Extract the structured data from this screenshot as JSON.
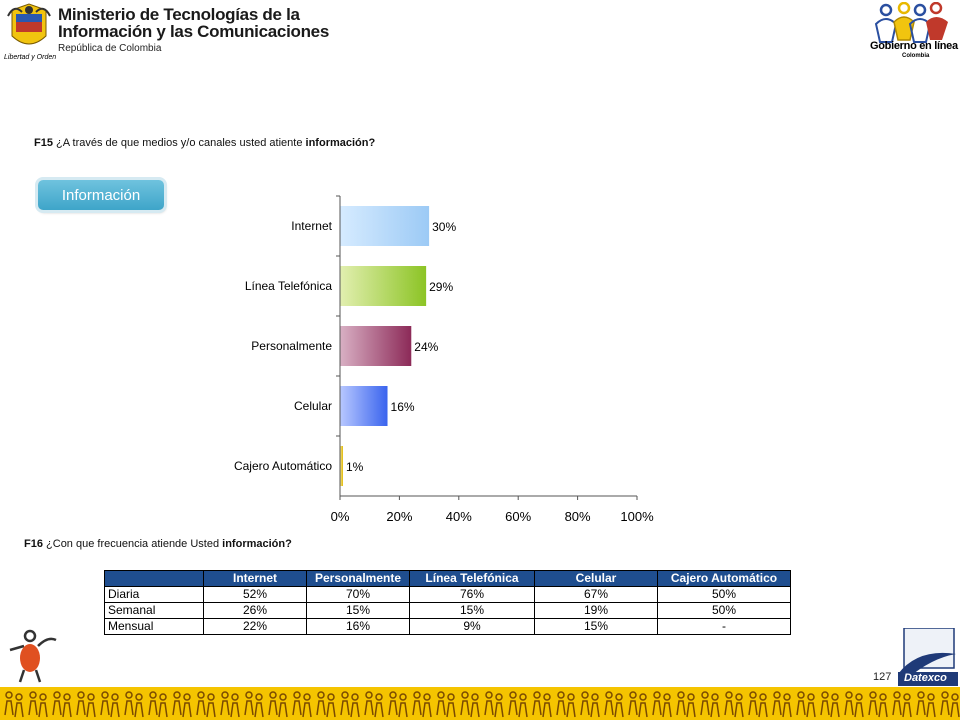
{
  "header": {
    "ministry_line1": "Ministerio de Tecnologías de la",
    "ministry_line2": "Información y las Comunicaciones",
    "ministry_line3": "República de Colombia",
    "seal_caption": "Libertad y Orden",
    "gobierno_line1": "Gobierno en línea",
    "gobierno_line2": "Colombia"
  },
  "q15": {
    "code": "F15",
    "text": "¿A través de que medios y/o canales usted atiente",
    "bold": "información?"
  },
  "q16": {
    "code": "F16",
    "text": "¿Con que frecuencia atiende Usted",
    "bold": "información?"
  },
  "badge": {
    "label": "Información"
  },
  "chart_data": {
    "type": "bar",
    "orientation": "horizontal",
    "categories": [
      "Internet",
      "Línea Telefónica",
      "Personalmente",
      "Celular",
      "Cajero Automático"
    ],
    "values": [
      30,
      29,
      24,
      16,
      1
    ],
    "value_labels": [
      "30%",
      "29%",
      "24%",
      "16%",
      "1%"
    ],
    "x_ticks": [
      "0%",
      "20%",
      "40%",
      "60%",
      "80%",
      "100%"
    ],
    "xlim": [
      0,
      100
    ],
    "grid": false,
    "colors": [
      [
        "#d6ebff",
        "#9ccaf5"
      ],
      [
        "#e2efb0",
        "#8cc425"
      ],
      [
        "#d9b0c4",
        "#8c2a58"
      ],
      [
        "#b8c8ff",
        "#3a64ee"
      ],
      [
        "#f5e6a0",
        "#e0b800"
      ]
    ]
  },
  "table": {
    "headers": [
      "",
      "Internet",
      "Personalmente",
      "Línea Telefónica",
      "Celular",
      "Cajero Automático"
    ],
    "rows": [
      [
        "Diaria",
        "52%",
        "70%",
        "76%",
        "67%",
        "50%"
      ],
      [
        "Semanal",
        "26%",
        "15%",
        "15%",
        "19%",
        "50%"
      ],
      [
        "Mensual",
        "22%",
        "16%",
        "9%",
        "15%",
        "-"
      ]
    ]
  },
  "footer": {
    "page_number": "127",
    "datexco": "Datexco"
  }
}
